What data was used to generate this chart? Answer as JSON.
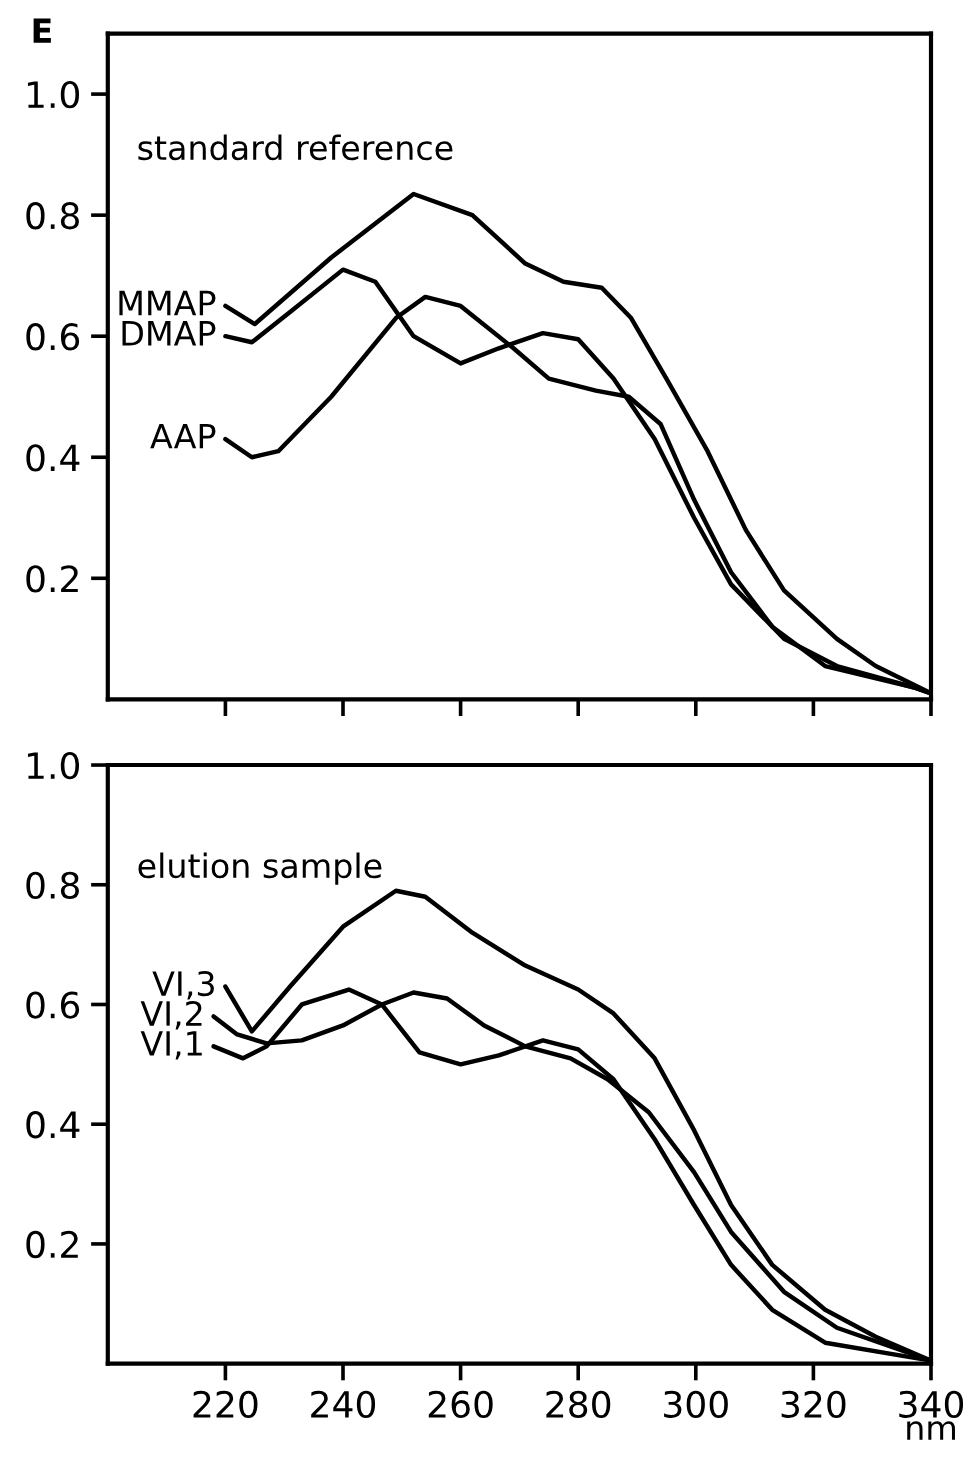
{
  "chart_data": [
    {
      "type": "line",
      "title": "standard reference",
      "ylabel": "E",
      "xlim": [
        200,
        340
      ],
      "ylim": [
        0,
        1.1
      ],
      "xticks": [
        220,
        240,
        260,
        280,
        300,
        320,
        340
      ],
      "yticks": [
        0.2,
        0.4,
        0.6,
        0.8,
        {
          "value": 1.0,
          "label": "1.0"
        }
      ],
      "tick_labels": "y",
      "grid": false,
      "legend": false,
      "marker": "none",
      "line_style": "solid",
      "series": [
        {
          "name": "MMAP",
          "color": "#000000",
          "x": [
            220,
            225,
            238,
            252,
            262,
            271,
            277.5,
            284,
            289,
            295,
            302,
            308.5,
            315,
            324,
            330.6,
            340
          ],
          "values": [
            0.65,
            0.62,
            0.73,
            0.835,
            0.8,
            0.72,
            0.69,
            0.68,
            0.63,
            0.53,
            0.41,
            0.28,
            0.18,
            0.1,
            0.055,
            0.01
          ]
        },
        {
          "name": "DMAP",
          "color": "#000000",
          "x": [
            220,
            224.5,
            231,
            240,
            245.5,
            252,
            260,
            266.5,
            274,
            280,
            286,
            293,
            299.7,
            306,
            315,
            324,
            337,
            340
          ],
          "values": [
            0.6,
            0.59,
            0.64,
            0.71,
            0.69,
            0.6,
            0.555,
            0.58,
            0.605,
            0.595,
            0.53,
            0.43,
            0.3,
            0.19,
            0.1,
            0.055,
            0.02,
            0.01
          ]
        },
        {
          "name": "AAP",
          "color": "#000000",
          "x": [
            220,
            224.5,
            229,
            238,
            249,
            254,
            260,
            269,
            275,
            283,
            288.6,
            294,
            299.7,
            306,
            313,
            322,
            337,
            340
          ],
          "values": [
            0.43,
            0.4,
            0.41,
            0.5,
            0.63,
            0.665,
            0.65,
            0.58,
            0.53,
            0.51,
            0.5,
            0.455,
            0.33,
            0.21,
            0.12,
            0.055,
            0.02,
            0.01
          ]
        }
      ]
    },
    {
      "type": "line",
      "title": "elution sample",
      "xlabel": "nm",
      "xlim": [
        200,
        340
      ],
      "ylim": [
        0,
        1.0
      ],
      "xticks": [
        220,
        240,
        260,
        280,
        300,
        320,
        340
      ],
      "yticks": [
        0.2,
        0.4,
        0.6,
        0.8,
        {
          "value": 1.0,
          "label": "1.0"
        }
      ],
      "grid": false,
      "legend": false,
      "marker": "none",
      "line_style": "solid",
      "series": [
        {
          "name": "VI,3",
          "color": "#000000",
          "x": [
            220,
            224.5,
            231,
            240,
            249,
            254,
            262,
            271,
            280,
            286,
            293,
            299.7,
            306,
            313,
            322,
            330.6,
            340
          ],
          "values": [
            0.63,
            0.555,
            0.63,
            0.73,
            0.79,
            0.78,
            0.72,
            0.665,
            0.625,
            0.585,
            0.51,
            0.39,
            0.265,
            0.165,
            0.09,
            0.045,
            0.005
          ]
        },
        {
          "name": "VI,2",
          "color": "#000000",
          "x": [
            218,
            222,
            227,
            233,
            240,
            246.6,
            252,
            257.7,
            264,
            271,
            278.7,
            285,
            292,
            299.7,
            306,
            315,
            324,
            340
          ],
          "values": [
            0.58,
            0.55,
            0.535,
            0.54,
            0.565,
            0.6,
            0.62,
            0.61,
            0.565,
            0.53,
            0.51,
            0.475,
            0.42,
            0.32,
            0.22,
            0.12,
            0.06,
            0.005
          ]
        },
        {
          "name": "VI,1",
          "color": "#000000",
          "x": [
            218,
            223,
            227,
            233,
            241,
            246.6,
            253,
            260,
            266.5,
            274,
            280,
            286,
            293,
            299.7,
            306,
            313,
            322,
            340
          ],
          "values": [
            0.53,
            0.51,
            0.53,
            0.6,
            0.625,
            0.6,
            0.52,
            0.5,
            0.515,
            0.54,
            0.525,
            0.475,
            0.375,
            0.265,
            0.165,
            0.09,
            0.035,
            0.005
          ]
        }
      ]
    }
  ]
}
